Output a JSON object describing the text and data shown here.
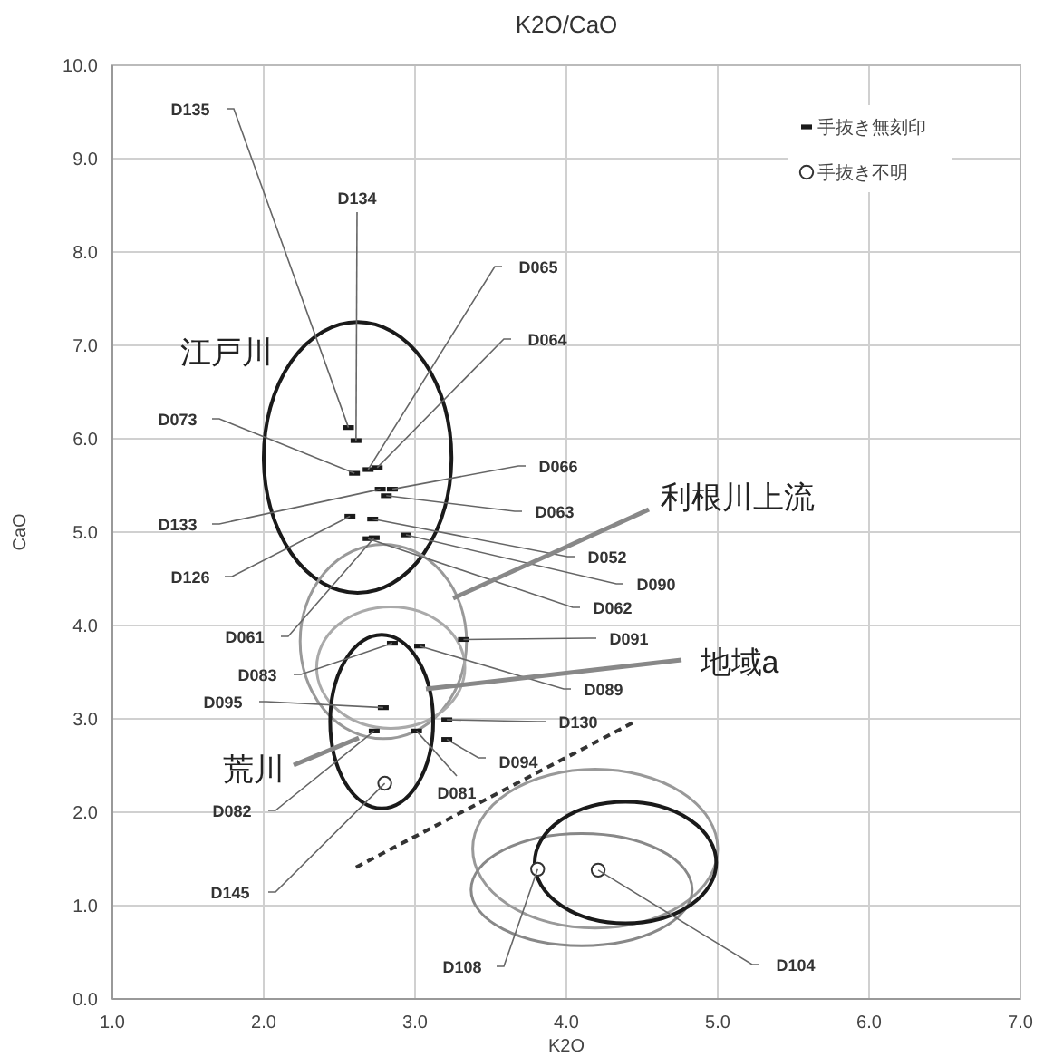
{
  "chart_data": {
    "type": "scatter",
    "title": "K2O/CaO",
    "xlabel": "K2O",
    "ylabel": "CaO",
    "xlim": [
      1,
      7
    ],
    "xticks": [
      {
        "value": 1,
        "label": "1.0"
      },
      {
        "value": 2,
        "label": "2.0"
      },
      {
        "value": 3,
        "label": "3.0"
      },
      {
        "value": 4,
        "label": "4.0"
      },
      {
        "value": 5,
        "label": "5.0"
      },
      {
        "value": 6,
        "label": "6.0"
      },
      {
        "value": 7,
        "label": "7.0"
      }
    ],
    "ylim": [
      0,
      10
    ],
    "yticks": [
      {
        "value": 0,
        "label": "0.0"
      },
      {
        "value": 1,
        "label": "1.0"
      },
      {
        "value": 2,
        "label": "2.0"
      },
      {
        "value": 3,
        "label": "3.0"
      },
      {
        "value": 4,
        "label": "4.0"
      },
      {
        "value": 5,
        "label": "5.0"
      },
      {
        "value": 6,
        "label": "6.0"
      },
      {
        "value": 7,
        "label": "7.0"
      },
      {
        "value": 8,
        "label": "8.0"
      },
      {
        "value": 9,
        "label": "9.0"
      },
      {
        "value": 10,
        "label": "10.0"
      }
    ],
    "grid": true,
    "legend": "top right",
    "series": [
      {
        "type": "line",
        "color": "#333333",
        "marker": "none",
        "line_style": "dashed",
        "x": [
          2.61,
          4.44
        ],
        "values": [
          1.41,
          2.96
        ]
      },
      {
        "type": "scatter",
        "name": "手抜き無刻印",
        "color": "#1a1a1a",
        "marker": "square",
        "x": [
          2.56,
          2.61,
          2.69,
          2.75,
          2.6,
          2.85,
          2.81,
          2.77,
          2.57,
          2.72,
          2.94,
          2.69,
          2.73,
          3.32,
          2.85,
          3.03,
          2.79,
          3.21,
          3.21,
          3.01,
          2.73
        ],
        "values": [
          6.12,
          5.98,
          5.67,
          5.69,
          5.63,
          5.46,
          5.39,
          5.46,
          5.17,
          5.14,
          4.97,
          4.93,
          4.94,
          3.85,
          3.81,
          3.78,
          3.12,
          2.99,
          2.78,
          2.87,
          2.87
        ]
      },
      {
        "type": "scatter",
        "name": "手抜き不明",
        "color": "#333333",
        "marker": "circle",
        "x": [
          2.8,
          3.81,
          4.21
        ],
        "values": [
          2.31,
          1.39,
          1.38
        ]
      }
    ],
    "annotations": [
      {
        "text": "D135",
        "x": 2.56,
        "y": 6.12
      },
      {
        "text": "D134",
        "x": 2.61,
        "y": 5.98
      },
      {
        "text": "D065",
        "x": 2.69,
        "y": 5.67
      },
      {
        "text": "D064",
        "x": 2.75,
        "y": 5.69
      },
      {
        "text": "D073",
        "x": 2.6,
        "y": 5.63
      },
      {
        "text": "D066",
        "x": 2.85,
        "y": 5.46
      },
      {
        "text": "D063",
        "x": 2.81,
        "y": 5.39
      },
      {
        "text": "D133",
        "x": 2.77,
        "y": 5.46
      },
      {
        "text": "D126",
        "x": 2.57,
        "y": 5.17
      },
      {
        "text": "D052",
        "x": 2.72,
        "y": 5.14
      },
      {
        "text": "D090",
        "x": 2.94,
        "y": 4.97
      },
      {
        "text": "D062",
        "x": 2.69,
        "y": 4.93
      },
      {
        "text": "D061",
        "x": 2.73,
        "y": 4.94
      },
      {
        "text": "D091",
        "x": 3.32,
        "y": 3.85
      },
      {
        "text": "D083",
        "x": 2.85,
        "y": 3.81
      },
      {
        "text": "D089",
        "x": 3.03,
        "y": 3.78
      },
      {
        "text": "D095",
        "x": 2.79,
        "y": 3.12
      },
      {
        "text": "D130",
        "x": 3.21,
        "y": 2.99
      },
      {
        "text": "D094",
        "x": 3.21,
        "y": 2.78
      },
      {
        "text": "D081",
        "x": 3.01,
        "y": 2.87
      },
      {
        "text": "D082",
        "x": 2.73,
        "y": 2.87
      },
      {
        "text": "D145",
        "x": 2.8,
        "y": 2.31
      },
      {
        "text": "D108",
        "x": 3.81,
        "y": 1.39
      },
      {
        "text": "D104",
        "x": 4.21,
        "y": 1.38
      },
      "江戸川",
      "利根川上流",
      "地域a",
      "荒川"
    ]
  }
}
